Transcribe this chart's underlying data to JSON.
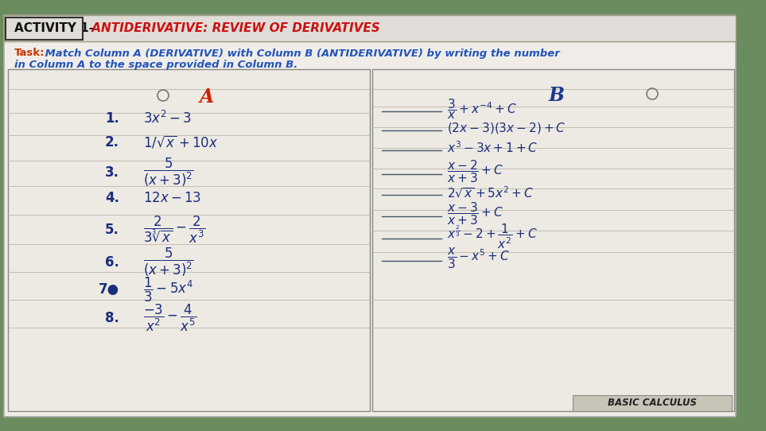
{
  "title_black": "ACTIVITY 1- ",
  "title_red": "ANTIDERIVATIVE: REVIEW OF DERIVATIVES",
  "task_line1": "Task: Match Column A (DERIVATIVE) with Column B (ANTIDERIVATIVE) by writing the number",
  "task_line2": "in Column A to the space provided in Column B.",
  "col_a_header": "A",
  "col_b_header": "B",
  "bg_wall_color": "#6b8c5e",
  "paper_color": "#f0ede8",
  "paper_color2": "#e8e5e0",
  "title_bar_color": "#e0ddd8",
  "title_border_color": "#888866",
  "task_color_label": "#cc3300",
  "task_color_text": "#2255aa",
  "col_a_color": "#cc2200",
  "col_b_color": "#1a3a8c",
  "item_color": "#1a2d7a",
  "line_color": "#445566",
  "footer_text": "BASIC CALCULUS",
  "footer_bg": "#c8c5b8",
  "grid_color": "#b0aaa0"
}
